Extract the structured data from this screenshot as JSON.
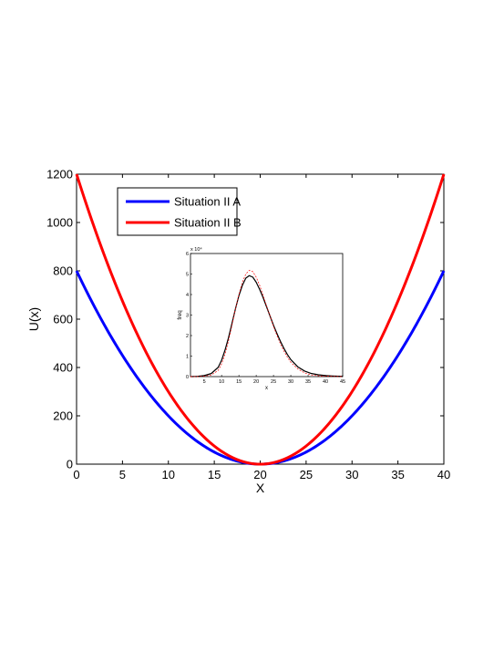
{
  "chart_data": [
    {
      "type": "line",
      "xlabel": "X",
      "ylabel": "U(x)",
      "xlim": [
        0,
        40
      ],
      "ylim": [
        0,
        1200
      ],
      "xticks": [
        0,
        5,
        10,
        15,
        20,
        25,
        30,
        35,
        40
      ],
      "yticks": [
        0,
        200,
        400,
        600,
        800,
        1000,
        1200
      ],
      "grid": false,
      "legend_position": "top-left",
      "series": [
        {
          "name": "Situation II A",
          "color": "#0000ff",
          "form": "quadratic",
          "center": 20,
          "edge_value": 800
        },
        {
          "name": "Situation II B",
          "color": "#ff0000",
          "form": "quadratic",
          "center": 20,
          "edge_value": 1200
        }
      ]
    },
    {
      "type": "line",
      "role": "inset",
      "xlabel": "x",
      "ylabel": "freq",
      "exponent_label": "x 10⁴",
      "xlim": [
        1,
        45
      ],
      "ylim": [
        0,
        6
      ],
      "xticks": [
        5,
        10,
        15,
        20,
        25,
        30,
        35,
        40,
        45
      ],
      "yticks": [
        0,
        1,
        2,
        3,
        4,
        5,
        6
      ],
      "series": [
        {
          "color": "#000000",
          "style": "solid",
          "x": [
            1,
            3,
            5,
            7,
            9,
            10,
            11,
            12,
            13,
            14,
            15,
            16,
            17,
            18,
            19,
            20,
            21,
            22,
            23,
            24,
            25,
            26,
            27,
            28,
            29,
            30,
            32,
            34,
            36,
            38,
            40,
            42,
            45
          ],
          "y": [
            0,
            0.01,
            0.05,
            0.15,
            0.45,
            0.8,
            1.3,
            1.9,
            2.6,
            3.3,
            3.95,
            4.45,
            4.8,
            4.92,
            4.85,
            4.6,
            4.25,
            3.85,
            3.4,
            2.95,
            2.5,
            2.1,
            1.72,
            1.38,
            1.08,
            0.83,
            0.48,
            0.27,
            0.15,
            0.09,
            0.05,
            0.03,
            0.01
          ]
        },
        {
          "color": "#ff0000",
          "style": "dashed",
          "x": [
            1,
            3,
            5,
            7,
            9,
            10,
            11,
            12,
            13,
            14,
            15,
            16,
            17,
            18,
            19,
            20,
            21,
            22,
            23,
            24,
            25,
            26,
            27,
            28,
            29,
            30,
            32,
            34,
            36,
            38,
            40,
            42,
            45
          ],
          "y": [
            0,
            0,
            0.02,
            0.08,
            0.3,
            0.62,
            1.1,
            1.75,
            2.5,
            3.3,
            4.0,
            4.6,
            5.0,
            5.18,
            5.12,
            4.85,
            4.45,
            3.95,
            3.45,
            2.95,
            2.45,
            2.0,
            1.6,
            1.25,
            0.95,
            0.7,
            0.38,
            0.18,
            0.08,
            0.04,
            0.02,
            0.01,
            0
          ]
        }
      ]
    }
  ]
}
